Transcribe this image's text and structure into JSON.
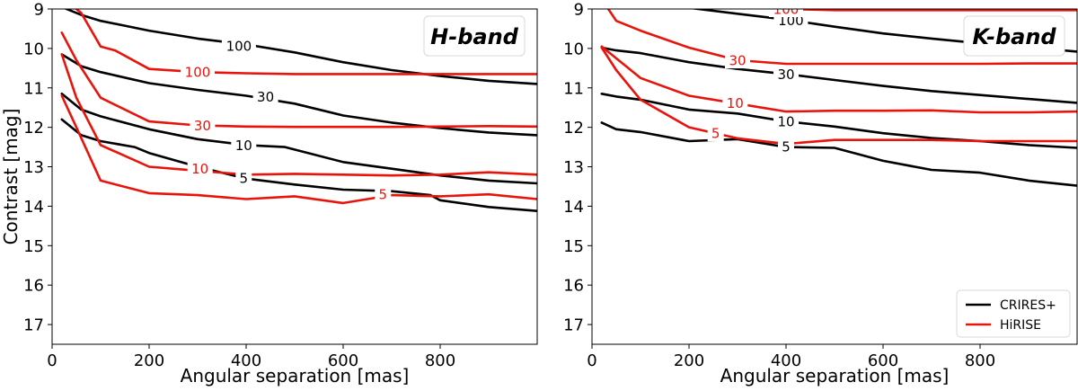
{
  "chart_data": [
    {
      "type": "line",
      "title": "H-band",
      "xlabel": "Angular separation [mas]",
      "ylabel": "Contrast [mag]",
      "xlim": [
        0,
        1000
      ],
      "ylim": [
        17.5,
        9
      ],
      "xticks": [
        0,
        200,
        400,
        600,
        800
      ],
      "yticks": [
        9,
        10,
        11,
        12,
        13,
        14,
        15,
        16,
        17
      ],
      "show_legend": false,
      "series": [
        {
          "name": "CRIRES+",
          "level": "100",
          "color": "#000000",
          "x": [
            20,
            60,
            100,
            200,
            300,
            400,
            500,
            600,
            700,
            800,
            900,
            1000
          ],
          "y": [
            8.95,
            9.15,
            9.3,
            9.55,
            9.75,
            9.9,
            10.1,
            10.35,
            10.55,
            10.7,
            10.82,
            10.9
          ],
          "label_at": [
            385,
            9.93
          ]
        },
        {
          "name": "CRIRES+",
          "level": "30",
          "color": "#000000",
          "x": [
            20,
            60,
            100,
            200,
            300,
            400,
            500,
            600,
            700,
            800,
            900,
            1000
          ],
          "y": [
            10.15,
            10.45,
            10.6,
            10.88,
            11.05,
            11.2,
            11.4,
            11.7,
            11.88,
            12.02,
            12.13,
            12.2
          ],
          "label_at": [
            440,
            11.22
          ]
        },
        {
          "name": "CRIRES+",
          "level": "10",
          "color": "#000000",
          "x": [
            20,
            60,
            100,
            200,
            300,
            400,
            480,
            600,
            700,
            800,
            900,
            1000
          ],
          "y": [
            11.15,
            11.55,
            11.72,
            12.05,
            12.3,
            12.45,
            12.5,
            12.88,
            13.05,
            13.22,
            13.35,
            13.42
          ],
          "label_at": [
            395,
            12.45
          ]
        },
        {
          "name": "CRIRES+",
          "level": "5",
          "color": "#000000",
          "x": [
            20,
            60,
            100,
            170,
            200,
            300,
            400,
            500,
            600,
            700,
            780,
            800,
            900,
            1000
          ],
          "y": [
            11.8,
            12.2,
            12.35,
            12.5,
            12.65,
            13.0,
            13.3,
            13.45,
            13.58,
            13.62,
            13.72,
            13.85,
            14.02,
            14.12
          ],
          "label_at": [
            395,
            13.28
          ]
        },
        {
          "name": "HiRISE",
          "level": "100",
          "color": "#e8140c",
          "x": [
            20,
            60,
            100,
            130,
            200,
            300,
            400,
            500,
            600,
            700,
            800,
            900,
            1000
          ],
          "y": [
            8.7,
            9.1,
            9.95,
            10.05,
            10.52,
            10.6,
            10.63,
            10.65,
            10.65,
            10.65,
            10.65,
            10.65,
            10.65
          ],
          "label_at": [
            300,
            10.6
          ]
        },
        {
          "name": "HiRISE",
          "level": "30",
          "color": "#e8140c",
          "x": [
            20,
            50,
            100,
            200,
            300,
            400,
            500,
            600,
            700,
            800,
            900,
            1000
          ],
          "y": [
            9.6,
            10.3,
            11.25,
            11.85,
            11.95,
            11.98,
            11.99,
            11.99,
            11.99,
            11.98,
            11.97,
            11.98
          ],
          "label_at": [
            310,
            11.95
          ]
        },
        {
          "name": "HiRISE",
          "level": "10",
          "color": "#e8140c",
          "x": [
            20,
            50,
            100,
            200,
            300,
            400,
            500,
            600,
            700,
            800,
            900,
            1000
          ],
          "y": [
            10.15,
            11.25,
            12.45,
            13.0,
            13.1,
            13.2,
            13.18,
            13.2,
            13.22,
            13.2,
            13.14,
            13.2
          ],
          "label_at": [
            305,
            13.05
          ]
        },
        {
          "name": "HiRISE",
          "level": "5",
          "color": "#e8140c",
          "x": [
            20,
            50,
            100,
            200,
            300,
            400,
            500,
            600,
            700,
            800,
            900,
            1000
          ],
          "y": [
            11.2,
            12.0,
            13.35,
            13.67,
            13.72,
            13.82,
            13.75,
            13.92,
            13.72,
            13.75,
            13.7,
            13.82
          ],
          "label_at": [
            682,
            13.7
          ]
        }
      ]
    },
    {
      "type": "line",
      "title": "K-band",
      "xlabel": "Angular separation [mas]",
      "ylabel": "",
      "xlim": [
        0,
        1000
      ],
      "ylim": [
        17.5,
        9
      ],
      "xticks": [
        0,
        200,
        400,
        600,
        800
      ],
      "yticks": [
        9,
        10,
        11,
        12,
        13,
        14,
        15,
        16,
        17
      ],
      "show_legend": true,
      "legend": [
        "CRIRES+",
        "HiRISE"
      ],
      "legend_loc": "lower right",
      "series": [
        {
          "name": "CRIRES+",
          "level": "100",
          "color": "#000000",
          "x": [
            200,
            300,
            400,
            500,
            600,
            700,
            800,
            900,
            1000
          ],
          "y": [
            8.97,
            9.12,
            9.27,
            9.45,
            9.62,
            9.75,
            9.87,
            9.97,
            10.08
          ],
          "label_at": [
            410,
            9.28
          ]
        },
        {
          "name": "CRIRES+",
          "level": "30",
          "color": "#000000",
          "x": [
            20,
            50,
            100,
            200,
            300,
            400,
            500,
            600,
            700,
            800,
            900,
            1000
          ],
          "y": [
            9.98,
            10.05,
            10.12,
            10.35,
            10.52,
            10.65,
            10.8,
            10.95,
            11.08,
            11.18,
            11.28,
            11.38
          ],
          "label_at": [
            400,
            10.65
          ]
        },
        {
          "name": "CRIRES+",
          "level": "10",
          "color": "#000000",
          "x": [
            20,
            50,
            100,
            200,
            300,
            400,
            500,
            600,
            700,
            800,
            900,
            1000
          ],
          "y": [
            11.15,
            11.22,
            11.3,
            11.55,
            11.65,
            11.85,
            11.98,
            12.15,
            12.27,
            12.35,
            12.45,
            12.52
          ],
          "label_at": [
            400,
            11.85
          ]
        },
        {
          "name": "CRIRES+",
          "level": "5",
          "color": "#000000",
          "x": [
            20,
            50,
            100,
            200,
            300,
            400,
            500,
            600,
            700,
            800,
            900,
            1000
          ],
          "y": [
            11.88,
            12.05,
            12.12,
            12.35,
            12.3,
            12.5,
            12.52,
            12.85,
            13.08,
            13.15,
            13.35,
            13.48
          ],
          "label_at": [
            400,
            12.49
          ]
        },
        {
          "name": "HiRISE",
          "level": "100",
          "color": "#e8140c",
          "x": [
            300,
            400,
            500,
            600,
            700,
            800,
            900,
            1000
          ],
          "y": [
            8.92,
            9.0,
            9.03,
            9.03,
            9.03,
            9.03,
            9.03,
            9.03
          ],
          "label_at": [
            400,
            9.0
          ]
        },
        {
          "name": "HiRISE",
          "level": "30",
          "color": "#e8140c",
          "x": [
            20,
            50,
            100,
            200,
            300,
            400,
            500,
            600,
            700,
            800,
            900,
            1000
          ],
          "y": [
            8.75,
            9.3,
            9.55,
            9.98,
            10.3,
            10.39,
            10.39,
            10.39,
            10.39,
            10.39,
            10.38,
            10.38
          ],
          "label_at": [
            300,
            10.3
          ]
        },
        {
          "name": "HiRISE",
          "level": "10",
          "color": "#e8140c",
          "x": [
            20,
            50,
            100,
            200,
            300,
            400,
            500,
            600,
            700,
            800,
            900,
            1000
          ],
          "y": [
            9.95,
            10.25,
            10.75,
            11.2,
            11.4,
            11.6,
            11.58,
            11.58,
            11.57,
            11.62,
            11.62,
            11.6
          ],
          "label_at": [
            295,
            11.38
          ]
        },
        {
          "name": "HiRISE",
          "level": "5",
          "color": "#e8140c",
          "x": [
            20,
            50,
            100,
            200,
            300,
            400,
            500,
            600,
            700,
            800,
            900,
            1000
          ],
          "y": [
            9.98,
            10.55,
            11.3,
            12.0,
            12.28,
            12.42,
            12.32,
            12.32,
            12.32,
            12.35,
            12.35,
            12.35
          ],
          "label_at": [
            255,
            12.15
          ]
        }
      ]
    }
  ]
}
